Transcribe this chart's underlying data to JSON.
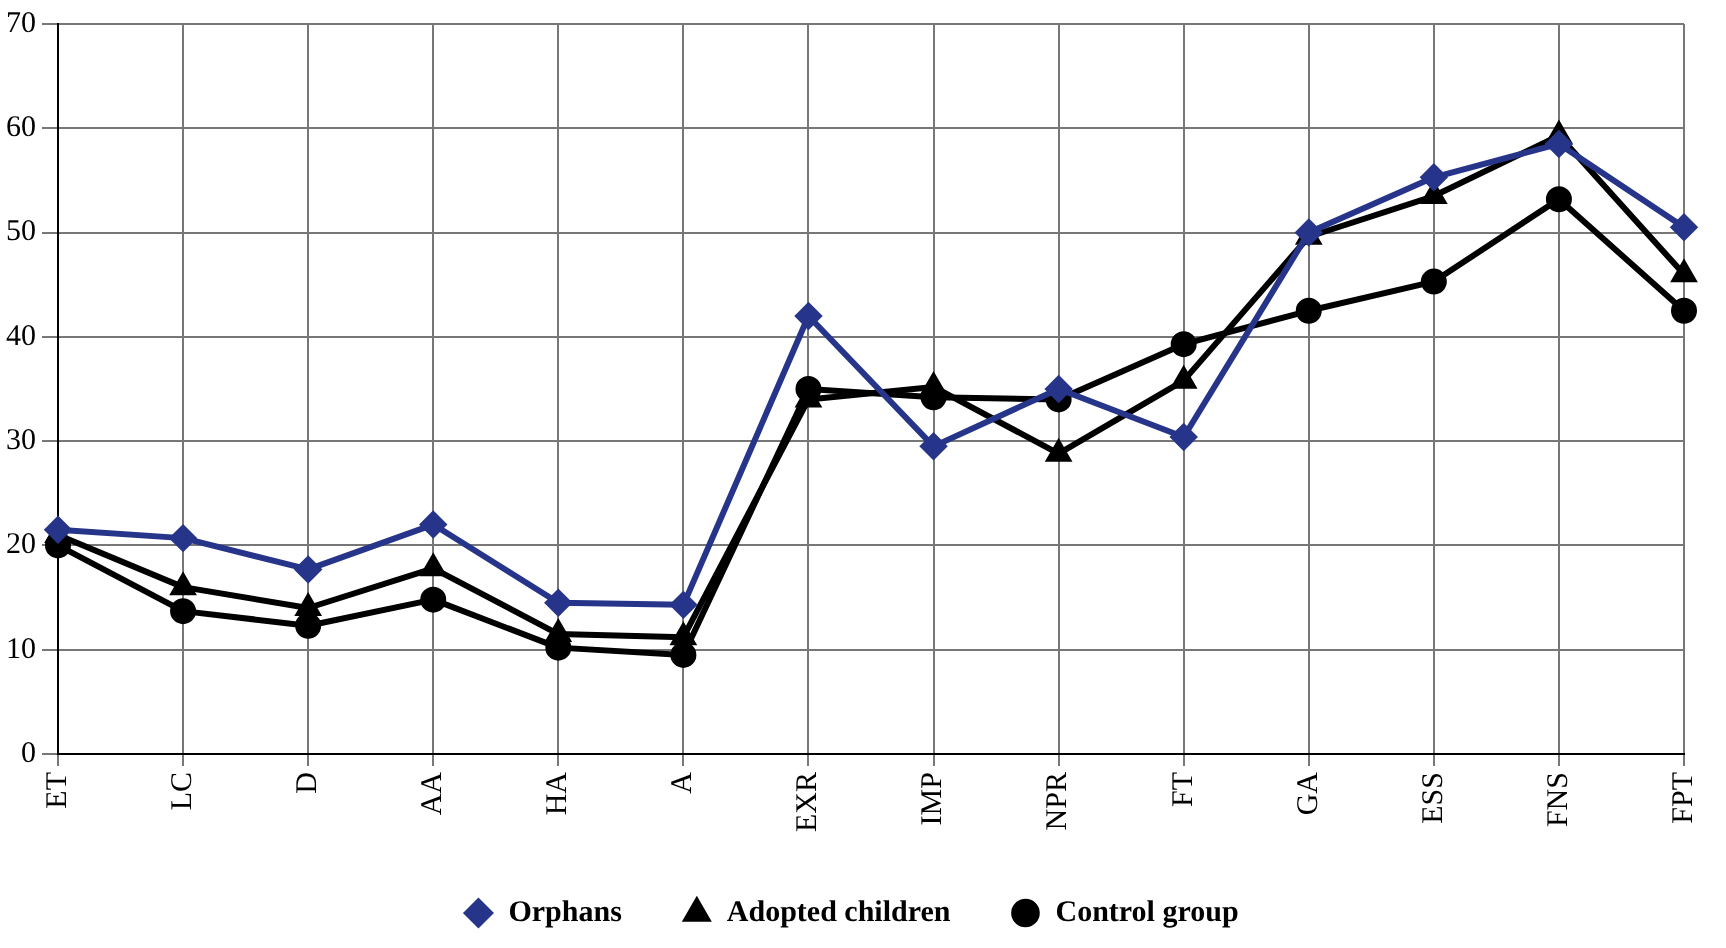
{
  "chart_data": {
    "type": "line",
    "categories": [
      "ET",
      "LC",
      "D",
      "AA",
      "HA",
      "A",
      "EXR",
      "IMP",
      "NPR",
      "FT",
      "GA",
      "ESS",
      "FNS",
      "FPT"
    ],
    "series": [
      {
        "name": "Orphans",
        "color": "#26358a",
        "marker": "diamond",
        "values": [
          21.5,
          20.7,
          17.7,
          22,
          14.5,
          14.3,
          42,
          29.5,
          35,
          30.4,
          50,
          55.3,
          58.5,
          50.5
        ]
      },
      {
        "name": "Adopted children",
        "color": "#000000",
        "marker": "triangle",
        "values": [
          21,
          16,
          14,
          17.8,
          11.5,
          11.2,
          34,
          35.2,
          28.8,
          35.8,
          49.6,
          53.5,
          59.3,
          46
        ]
      },
      {
        "name": "Control group",
        "color": "#000000",
        "marker": "circle",
        "values": [
          20,
          13.7,
          12.3,
          14.8,
          10.2,
          9.5,
          35,
          34.2,
          34,
          39.3,
          42.5,
          45.3,
          53.2,
          42.5
        ]
      }
    ],
    "ylim": [
      0,
      70
    ],
    "yticks": [
      0,
      10,
      20,
      30,
      40,
      50,
      60,
      70
    ],
    "grid": true,
    "legend": "bottom"
  }
}
